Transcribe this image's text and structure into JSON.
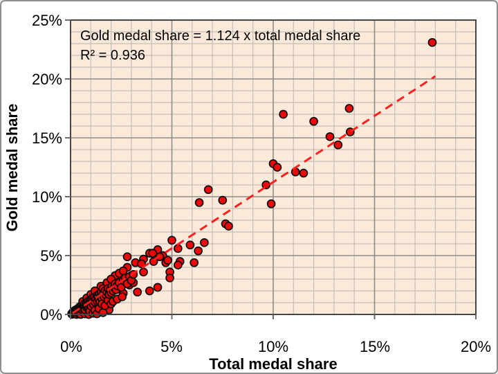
{
  "colors": {
    "plot_bg": "#FBE9DA",
    "grid_minor": "#C4BFB8",
    "grid_major": "#8F8C88",
    "plot_border": "#454545",
    "tick_mark": "#6E6B67",
    "point_fill": "#EE0707",
    "point_stroke": "#0A0A0A",
    "trend": "#FF1F1F",
    "text": "#000000",
    "frame_border": "#8F8F8F"
  },
  "chart_data": {
    "type": "scatter",
    "xlabel": "Total medal share",
    "ylabel": "Gold medal share",
    "xlim": [
      0,
      20
    ],
    "ylim": [
      0,
      25
    ],
    "minor_grid_step_pct": 1,
    "major_grid_step_pct": 5,
    "grid": "on",
    "legend": "none",
    "x_tick_labels": [
      "0%",
      "5%",
      "10%",
      "15%",
      "20%"
    ],
    "y_tick_labels": [
      "0%",
      "5%",
      "10%",
      "15%",
      "20%",
      "25%"
    ],
    "annotation": {
      "equation": "Gold medal share = 1.124 x total medal share",
      "r_squared": "R² = 0.936"
    },
    "trend": {
      "style": "dashed",
      "slope": 1.124,
      "intercept": 0,
      "r2": 0.936,
      "x_start": 0.1,
      "x_end": 18.0
    },
    "point_style": {
      "radius_px": 5.5,
      "stroke_width_px": 1.7
    },
    "points": [
      [
        17.85,
        23.1
      ],
      [
        13.75,
        17.5
      ],
      [
        10.5,
        17.0
      ],
      [
        12.0,
        16.4
      ],
      [
        13.8,
        15.5
      ],
      [
        12.8,
        15.1
      ],
      [
        13.2,
        14.4
      ],
      [
        10.0,
        12.8
      ],
      [
        10.2,
        12.5
      ],
      [
        11.1,
        12.1
      ],
      [
        11.5,
        12.0
      ],
      [
        9.65,
        11.0
      ],
      [
        6.8,
        10.6
      ],
      [
        7.5,
        9.7
      ],
      [
        6.35,
        9.5
      ],
      [
        9.9,
        9.4
      ],
      [
        7.65,
        7.7
      ],
      [
        7.8,
        7.5
      ],
      [
        6.6,
        6.1
      ],
      [
        5.0,
        6.3
      ],
      [
        5.9,
        5.9
      ],
      [
        5.3,
        5.6
      ],
      [
        6.3,
        5.4
      ],
      [
        4.3,
        5.5
      ],
      [
        4.55,
        5.0
      ],
      [
        3.9,
        5.2
      ],
      [
        4.05,
        5.2
      ],
      [
        4.4,
        4.9
      ],
      [
        2.8,
        4.9
      ],
      [
        3.6,
        4.7
      ],
      [
        4.1,
        4.5
      ],
      [
        3.2,
        4.4
      ],
      [
        3.5,
        4.3
      ],
      [
        4.7,
        4.4
      ],
      [
        4.8,
        4.6
      ],
      [
        5.4,
        4.5
      ],
      [
        6.1,
        4.4
      ],
      [
        5.3,
        4.2
      ],
      [
        4.9,
        3.6
      ],
      [
        4.9,
        3.1
      ],
      [
        2.8,
        4.0
      ],
      [
        3.6,
        3.6
      ],
      [
        3.0,
        3.3
      ],
      [
        4.3,
        2.3
      ],
      [
        3.9,
        2.0
      ],
      [
        3.3,
        1.9
      ],
      [
        2.6,
        1.8
      ],
      [
        2.5,
        2.9
      ],
      [
        2.9,
        2.5
      ],
      [
        3.1,
        2.7
      ],
      [
        1.9,
        0.4
      ],
      [
        2.2,
        3.3
      ],
      [
        2.4,
        3.5
      ],
      [
        2.6,
        3.7
      ],
      [
        0.05,
        0.05
      ],
      [
        0.07,
        0.1
      ],
      [
        0.08,
        0.02
      ],
      [
        0.1,
        0.15
      ],
      [
        0.1,
        0.04
      ],
      [
        0.12,
        0.2
      ],
      [
        0.13,
        0.08
      ],
      [
        0.15,
        0.25
      ],
      [
        0.15,
        0.05
      ],
      [
        0.17,
        0.12
      ],
      [
        0.18,
        0.3
      ],
      [
        0.2,
        0.1
      ],
      [
        0.2,
        0.22
      ],
      [
        0.22,
        0.35
      ],
      [
        0.23,
        0.15
      ],
      [
        0.25,
        0.28
      ],
      [
        0.25,
        0.06
      ],
      [
        0.27,
        0.4
      ],
      [
        0.28,
        0.18
      ],
      [
        0.3,
        0.32
      ],
      [
        0.3,
        0.0
      ],
      [
        0.32,
        0.45
      ],
      [
        0.33,
        0.22
      ],
      [
        0.35,
        0.38
      ],
      [
        0.36,
        0.12
      ],
      [
        0.38,
        0.5
      ],
      [
        0.4,
        0.3
      ],
      [
        0.4,
        0.55
      ],
      [
        0.42,
        0.18
      ],
      [
        0.44,
        0.48
      ],
      [
        0.45,
        0.65
      ],
      [
        0.47,
        0.35
      ],
      [
        0.5,
        0.55
      ],
      [
        0.5,
        0.25
      ],
      [
        0.5,
        0.0
      ],
      [
        0.52,
        0.7
      ],
      [
        0.55,
        0.45
      ],
      [
        0.57,
        0.8
      ],
      [
        0.6,
        0.6
      ],
      [
        0.6,
        0.35
      ],
      [
        0.6,
        1.1
      ],
      [
        0.63,
        0.75
      ],
      [
        0.65,
        0.5
      ],
      [
        0.68,
        0.9
      ],
      [
        0.7,
        0.65
      ],
      [
        0.7,
        0.05
      ],
      [
        0.72,
        0.4
      ],
      [
        0.75,
        0.85
      ],
      [
        0.78,
        1.0
      ],
      [
        0.8,
        0.6
      ],
      [
        0.8,
        1.4
      ],
      [
        0.82,
        0.75
      ],
      [
        0.85,
        1.1
      ],
      [
        0.88,
        0.9
      ],
      [
        0.9,
        0.55
      ],
      [
        0.9,
        0.0
      ],
      [
        0.93,
        1.05
      ],
      [
        0.95,
        0.8
      ],
      [
        0.95,
        0.3
      ],
      [
        0.98,
        1.2
      ],
      [
        1.0,
        0.95
      ],
      [
        1.0,
        1.7
      ],
      [
        1.02,
        0.7
      ],
      [
        1.05,
        1.3
      ],
      [
        1.08,
        1.0
      ],
      [
        1.1,
        1.45
      ],
      [
        1.1,
        0.1
      ],
      [
        1.13,
        0.85
      ],
      [
        1.15,
        1.2
      ],
      [
        1.18,
        1.5
      ],
      [
        1.2,
        1.05
      ],
      [
        1.2,
        2.0
      ],
      [
        1.2,
        0.35
      ],
      [
        1.25,
        1.35
      ],
      [
        1.3,
        1.6
      ],
      [
        1.3,
        0.05
      ],
      [
        1.32,
        1.1
      ],
      [
        1.35,
        1.5
      ],
      [
        1.4,
        1.25
      ],
      [
        1.4,
        0.5
      ],
      [
        1.42,
        1.75
      ],
      [
        1.45,
        1.05
      ],
      [
        1.5,
        1.6
      ],
      [
        1.5,
        2.4
      ],
      [
        1.52,
        1.9
      ],
      [
        1.55,
        1.35
      ],
      [
        1.55,
        0.9
      ],
      [
        1.6,
        1.75
      ],
      [
        1.6,
        0.15
      ],
      [
        1.6,
        2.2
      ],
      [
        1.65,
        1.5
      ],
      [
        1.7,
        2.0
      ],
      [
        1.7,
        0.75
      ],
      [
        1.75,
        1.65
      ],
      [
        1.8,
        1.9
      ],
      [
        1.8,
        2.7
      ],
      [
        1.85,
        2.2
      ],
      [
        1.85,
        1.2
      ],
      [
        1.9,
        1.7
      ],
      [
        1.95,
        2.1
      ],
      [
        2.0,
        1.85
      ],
      [
        2.0,
        0.9
      ],
      [
        2.0,
        3.0
      ],
      [
        2.05,
        2.4
      ],
      [
        2.1,
        2.0
      ],
      [
        2.1,
        1.1
      ],
      [
        2.15,
        2.3
      ],
      [
        2.2,
        2.6
      ],
      [
        2.25,
        2.1
      ],
      [
        2.3,
        2.45
      ],
      [
        2.3,
        1.3
      ],
      [
        2.4,
        2.7
      ],
      [
        2.5,
        2.3
      ],
      [
        2.55,
        1.5
      ],
      [
        2.6,
        2.9
      ],
      [
        2.7,
        3.1
      ],
      [
        2.8,
        2.6
      ],
      [
        2.9,
        3.2
      ],
      [
        3.0,
        2.9
      ],
      [
        3.1,
        3.4
      ]
    ]
  }
}
